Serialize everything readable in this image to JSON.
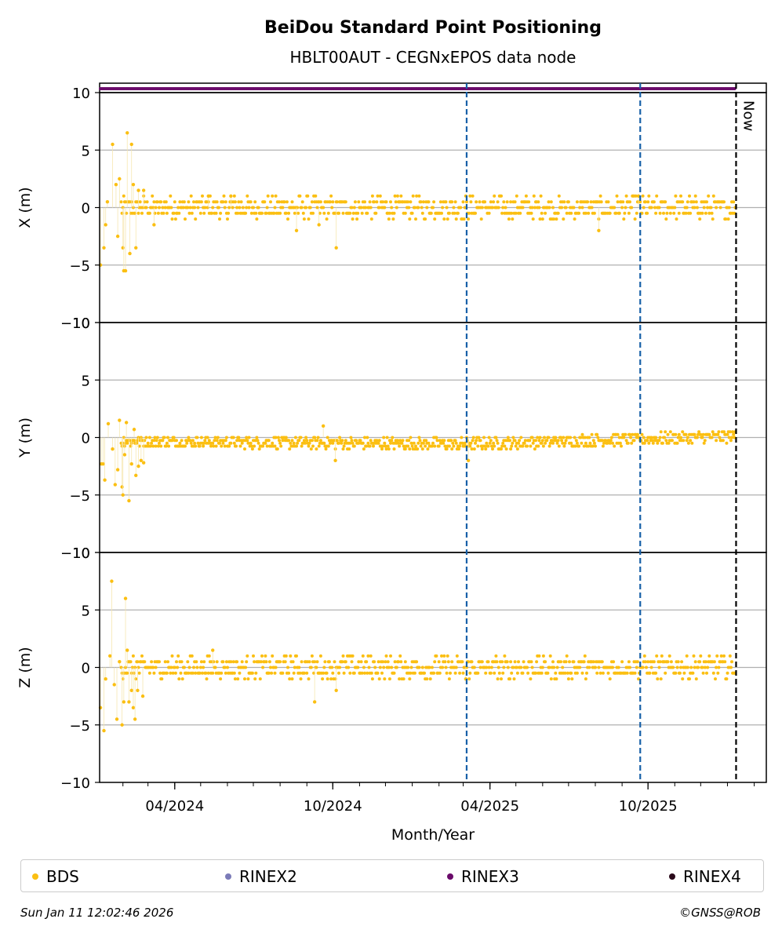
{
  "title": "BeiDou Standard Point Positioning",
  "subtitle": "HBLT00AUT - CEGNxEPOS data node",
  "chart_data": {
    "type": "scatter",
    "xlabel": "Month/Year",
    "x_range": [
      "2024-01-05",
      "2026-02-15"
    ],
    "x_tick_labels": [
      "04/2024",
      "10/2024",
      "04/2025",
      "10/2025"
    ],
    "x_tick_dates": [
      "2024-04-01",
      "2024-10-01",
      "2025-04-01",
      "2025-10-01"
    ],
    "x_minor_ticks": "monthly",
    "event_lines": [
      "2025-03-05",
      "2025-09-22"
    ],
    "now_line": {
      "date": "2026-01-11",
      "label": "Now"
    },
    "grid": true,
    "legend": {
      "placement": "bottom",
      "entries": [
        {
          "name": "BDS",
          "color": "#fbbf12"
        },
        {
          "name": "RINEX2",
          "color": "#7b7bb8"
        },
        {
          "name": "RINEX3",
          "color": "#6a0a6a"
        },
        {
          "name": "RINEX4",
          "color": "#2a0a1a"
        }
      ]
    },
    "rinex_band": {
      "series": "RINEX3",
      "start": "2024-01-05",
      "end": "2026-01-10"
    },
    "panels": [
      {
        "ylabel": "X (m)",
        "ylim": [
          -10,
          10
        ],
        "yticks": [
          -10,
          -5,
          0,
          5,
          10
        ],
        "outliers": [
          [
            "2024-01-06",
            -5.0
          ],
          [
            "2024-01-10",
            -3.5
          ],
          [
            "2024-01-12",
            -1.5
          ],
          [
            "2024-01-14",
            0.5
          ],
          [
            "2024-01-20",
            5.5
          ],
          [
            "2024-01-24",
            2.0
          ],
          [
            "2024-01-26",
            -2.5
          ],
          [
            "2024-01-28",
            2.5
          ],
          [
            "2024-02-01",
            -3.5
          ],
          [
            "2024-02-02",
            -5.5
          ],
          [
            "2024-02-04",
            -5.5
          ],
          [
            "2024-02-06",
            6.5
          ],
          [
            "2024-02-09",
            -4.0
          ],
          [
            "2024-02-11",
            5.5
          ],
          [
            "2024-02-13",
            2.0
          ],
          [
            "2024-02-16",
            -3.5
          ],
          [
            "2024-02-19",
            1.5
          ],
          [
            "2024-02-25",
            1.5
          ],
          [
            "2024-03-08",
            -1.5
          ],
          [
            "2024-05-10",
            1.0
          ],
          [
            "2024-06-05",
            1.0
          ],
          [
            "2024-08-20",
            -2.0
          ],
          [
            "2024-09-15",
            -1.5
          ],
          [
            "2024-10-05",
            -3.5
          ],
          [
            "2025-08-05",
            -2.0
          ],
          [
            "2025-09-20",
            1.0
          ]
        ]
      },
      {
        "ylabel": "Y (m)",
        "ylim": [
          -10,
          10
        ],
        "yticks": [
          -10,
          -5,
          0,
          5,
          10
        ],
        "outliers": [
          [
            "2024-01-07",
            -2.3
          ],
          [
            "2024-01-09",
            -2.3
          ],
          [
            "2024-01-11",
            -3.7
          ],
          [
            "2024-01-15",
            1.2
          ],
          [
            "2024-01-20",
            -1.0
          ],
          [
            "2024-01-23",
            -4.1
          ],
          [
            "2024-01-26",
            -2.8
          ],
          [
            "2024-01-28",
            1.5
          ],
          [
            "2024-01-31",
            -4.3
          ],
          [
            "2024-02-01",
            -5.0
          ],
          [
            "2024-02-03",
            -1.5
          ],
          [
            "2024-02-05",
            1.3
          ],
          [
            "2024-02-08",
            -5.5
          ],
          [
            "2024-02-11",
            -2.3
          ],
          [
            "2024-02-14",
            0.7
          ],
          [
            "2024-02-16",
            -3.3
          ],
          [
            "2024-02-19",
            -2.5
          ],
          [
            "2024-02-22",
            -2.0
          ],
          [
            "2024-02-25",
            -2.2
          ],
          [
            "2024-09-20",
            1.0
          ],
          [
            "2024-10-04",
            -2.0
          ],
          [
            "2025-03-07",
            -2.0
          ]
        ]
      },
      {
        "ylabel": "Z (m)",
        "ylim": [
          -10,
          10
        ],
        "yticks": [
          -10,
          -5,
          0,
          5,
          10
        ],
        "outliers": [
          [
            "2024-01-06",
            -3.5
          ],
          [
            "2024-01-10",
            -5.5
          ],
          [
            "2024-01-12",
            -1.0
          ],
          [
            "2024-01-17",
            1.0
          ],
          [
            "2024-01-19",
            7.5
          ],
          [
            "2024-01-22",
            -1.5
          ],
          [
            "2024-01-25",
            -4.5
          ],
          [
            "2024-01-28",
            0.5
          ],
          [
            "2024-01-31",
            -5.0
          ],
          [
            "2024-02-02",
            -3.0
          ],
          [
            "2024-02-04",
            6.0
          ],
          [
            "2024-02-06",
            1.5
          ],
          [
            "2024-02-08",
            -3.0
          ],
          [
            "2024-02-11",
            -2.0
          ],
          [
            "2024-02-13",
            -3.5
          ],
          [
            "2024-02-15",
            -4.5
          ],
          [
            "2024-02-18",
            -2.0
          ],
          [
            "2024-02-24",
            -2.5
          ],
          [
            "2024-05-15",
            1.5
          ],
          [
            "2024-09-10",
            -3.0
          ],
          [
            "2024-10-05",
            -2.0
          ],
          [
            "2025-03-04",
            -1.0
          ]
        ]
      }
    ]
  },
  "footer": {
    "timestamp": "Sun Jan 11 12:02:46 2026",
    "copyright": "©GNSS@ROB"
  }
}
